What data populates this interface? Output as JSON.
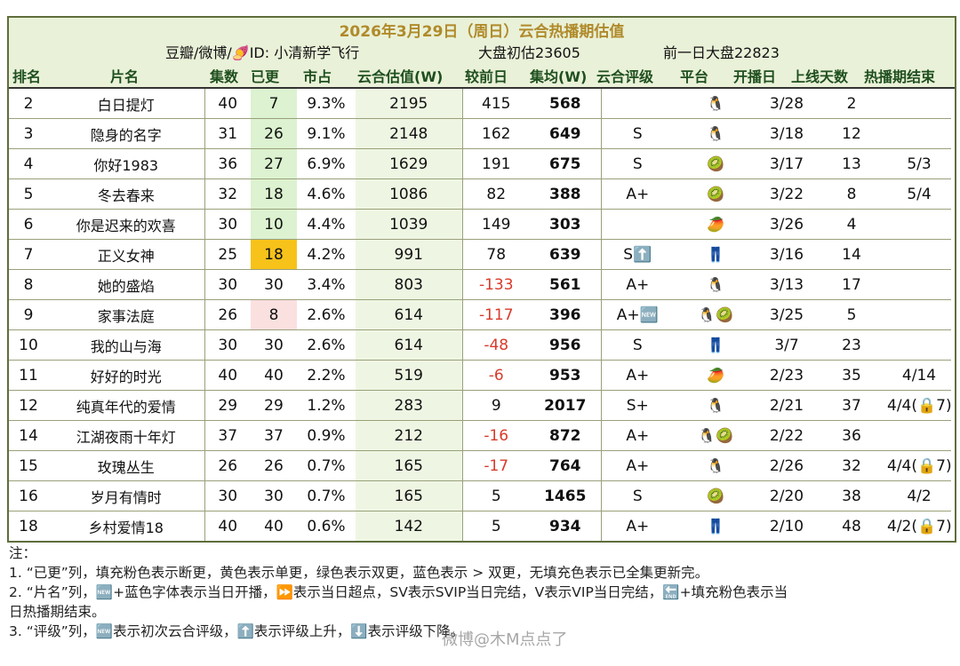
{
  "header": {
    "title": "2026年3月29日（周日）云合热播期估值",
    "source": "豆瓣/微博/🍠ID: 小清新学飞行",
    "market_estimate": "大盘初估23605",
    "prev_market": "前一日大盘22823"
  },
  "columns": [
    "排名",
    "片名",
    "集数",
    "已更",
    "市占",
    "云合估值(W)",
    "较前日",
    "集均(W)",
    "云合评级",
    "平台",
    "开播日",
    "上线天数",
    "热播期结束"
  ],
  "rows": [
    {
      "rank": "2",
      "name": "白日提灯",
      "eps": "40",
      "updated": "7",
      "share": "9.3%",
      "est": "2195",
      "delta": "415",
      "avg": "568",
      "rating": "",
      "platform": "🐧",
      "start": "3/28",
      "days": "2",
      "end": "",
      "upd_fill": "green",
      "neg": false
    },
    {
      "rank": "3",
      "name": "隐身的名字",
      "eps": "31",
      "updated": "26",
      "share": "9.1%",
      "est": "2148",
      "delta": "162",
      "avg": "649",
      "rating": "S",
      "platform": "🐧",
      "start": "3/18",
      "days": "12",
      "end": "",
      "upd_fill": "green",
      "neg": false
    },
    {
      "rank": "4",
      "name": "你好1983",
      "eps": "36",
      "updated": "27",
      "share": "6.9%",
      "est": "1629",
      "delta": "191",
      "avg": "675",
      "rating": "S",
      "platform": "🥝",
      "start": "3/17",
      "days": "13",
      "end": "5/3",
      "upd_fill": "green",
      "neg": false
    },
    {
      "rank": "5",
      "name": "冬去春来",
      "eps": "32",
      "updated": "18",
      "share": "4.6%",
      "est": "1086",
      "delta": "82",
      "avg": "388",
      "rating": "A+",
      "platform": "🥝",
      "start": "3/22",
      "days": "8",
      "end": "5/4",
      "upd_fill": "green",
      "neg": false
    },
    {
      "rank": "6",
      "name": "你是迟来的欢喜",
      "eps": "30",
      "updated": "10",
      "share": "4.4%",
      "est": "1039",
      "delta": "149",
      "avg": "303",
      "rating": "",
      "platform": "🥭",
      "start": "3/26",
      "days": "4",
      "end": "",
      "upd_fill": "green",
      "neg": false
    },
    {
      "rank": "7",
      "name": "正义女神",
      "eps": "25",
      "updated": "18",
      "share": "4.2%",
      "est": "991",
      "delta": "78",
      "avg": "639",
      "rating": "S⬆️",
      "platform": "👖",
      "start": "3/16",
      "days": "14",
      "end": "",
      "upd_fill": "yellow",
      "neg": false
    },
    {
      "rank": "8",
      "name": "她的盛焰",
      "eps": "30",
      "updated": "30",
      "share": "3.4%",
      "est": "803",
      "delta": "-133",
      "avg": "561",
      "rating": "A+",
      "platform": "🐧",
      "start": "3/13",
      "days": "17",
      "end": "",
      "upd_fill": "",
      "neg": true
    },
    {
      "rank": "9",
      "name": "家事法庭",
      "eps": "26",
      "updated": "8",
      "share": "2.6%",
      "est": "614",
      "delta": "-117",
      "avg": "396",
      "rating": "A+🆕",
      "platform": "🐧🥝",
      "start": "3/25",
      "days": "5",
      "end": "",
      "upd_fill": "pink",
      "neg": true
    },
    {
      "rank": "10",
      "name": "我的山与海",
      "eps": "30",
      "updated": "30",
      "share": "2.6%",
      "est": "614",
      "delta": "-48",
      "avg": "956",
      "rating": "S",
      "platform": "👖",
      "start": "3/7",
      "days": "23",
      "end": "",
      "upd_fill": "",
      "neg": true
    },
    {
      "rank": "11",
      "name": "好好的时光",
      "eps": "40",
      "updated": "40",
      "share": "2.2%",
      "est": "519",
      "delta": "-6",
      "avg": "953",
      "rating": "A+",
      "platform": "🥭",
      "start": "2/23",
      "days": "35",
      "end": "4/14",
      "upd_fill": "",
      "neg": true
    },
    {
      "rank": "12",
      "name": "纯真年代的爱情",
      "eps": "29",
      "updated": "29",
      "share": "1.2%",
      "est": "283",
      "delta": "9",
      "avg": "2017",
      "rating": "S+",
      "platform": "🐧",
      "start": "2/21",
      "days": "37",
      "end": "4/4(🔒7)",
      "upd_fill": "",
      "neg": false
    },
    {
      "rank": "14",
      "name": "江湖夜雨十年灯",
      "eps": "37",
      "updated": "37",
      "share": "0.9%",
      "est": "212",
      "delta": "-16",
      "avg": "872",
      "rating": "A+",
      "platform": "🐧🥝",
      "start": "2/22",
      "days": "36",
      "end": "",
      "upd_fill": "",
      "neg": true
    },
    {
      "rank": "15",
      "name": "玫瑰丛生",
      "eps": "26",
      "updated": "26",
      "share": "0.7%",
      "est": "165",
      "delta": "-17",
      "avg": "764",
      "rating": "A+",
      "platform": "🐧",
      "start": "2/26",
      "days": "32",
      "end": "4/4(🔒7)",
      "upd_fill": "",
      "neg": true
    },
    {
      "rank": "16",
      "name": "岁月有情时",
      "eps": "30",
      "updated": "30",
      "share": "0.7%",
      "est": "165",
      "delta": "5",
      "avg": "1465",
      "rating": "S",
      "platform": "🥝",
      "start": "2/20",
      "days": "38",
      "end": "4/2",
      "upd_fill": "",
      "neg": false
    },
    {
      "rank": "18",
      "name": "乡村爱情18",
      "eps": "40",
      "updated": "40",
      "share": "0.6%",
      "est": "142",
      "delta": "5",
      "avg": "934",
      "rating": "A+",
      "platform": "👖",
      "start": "2/10",
      "days": "48",
      "end": "4/2(🔒7)",
      "upd_fill": "",
      "neg": false
    }
  ],
  "notes": {
    "heading": "注：",
    "line1": "1. “已更”列，填充粉色表示断更，黄色表示单更，绿色表示双更，蓝色表示 > 双更，无填充色表示已全集更新完。",
    "line2a": "2. “片名”列，🆕+蓝色字体表示当日开播，⏩表示当日超点，SV表示SVIP当日完结，V表示VIP当日完结，🔚+填充粉色表示当",
    "line2b": "日热播期结束。",
    "line3": "3. “评级”列，🆕表示初次云合评级，⬆️表示评级上升，⬇️表示评级下降。"
  },
  "watermark": "微博@木M点点了"
}
